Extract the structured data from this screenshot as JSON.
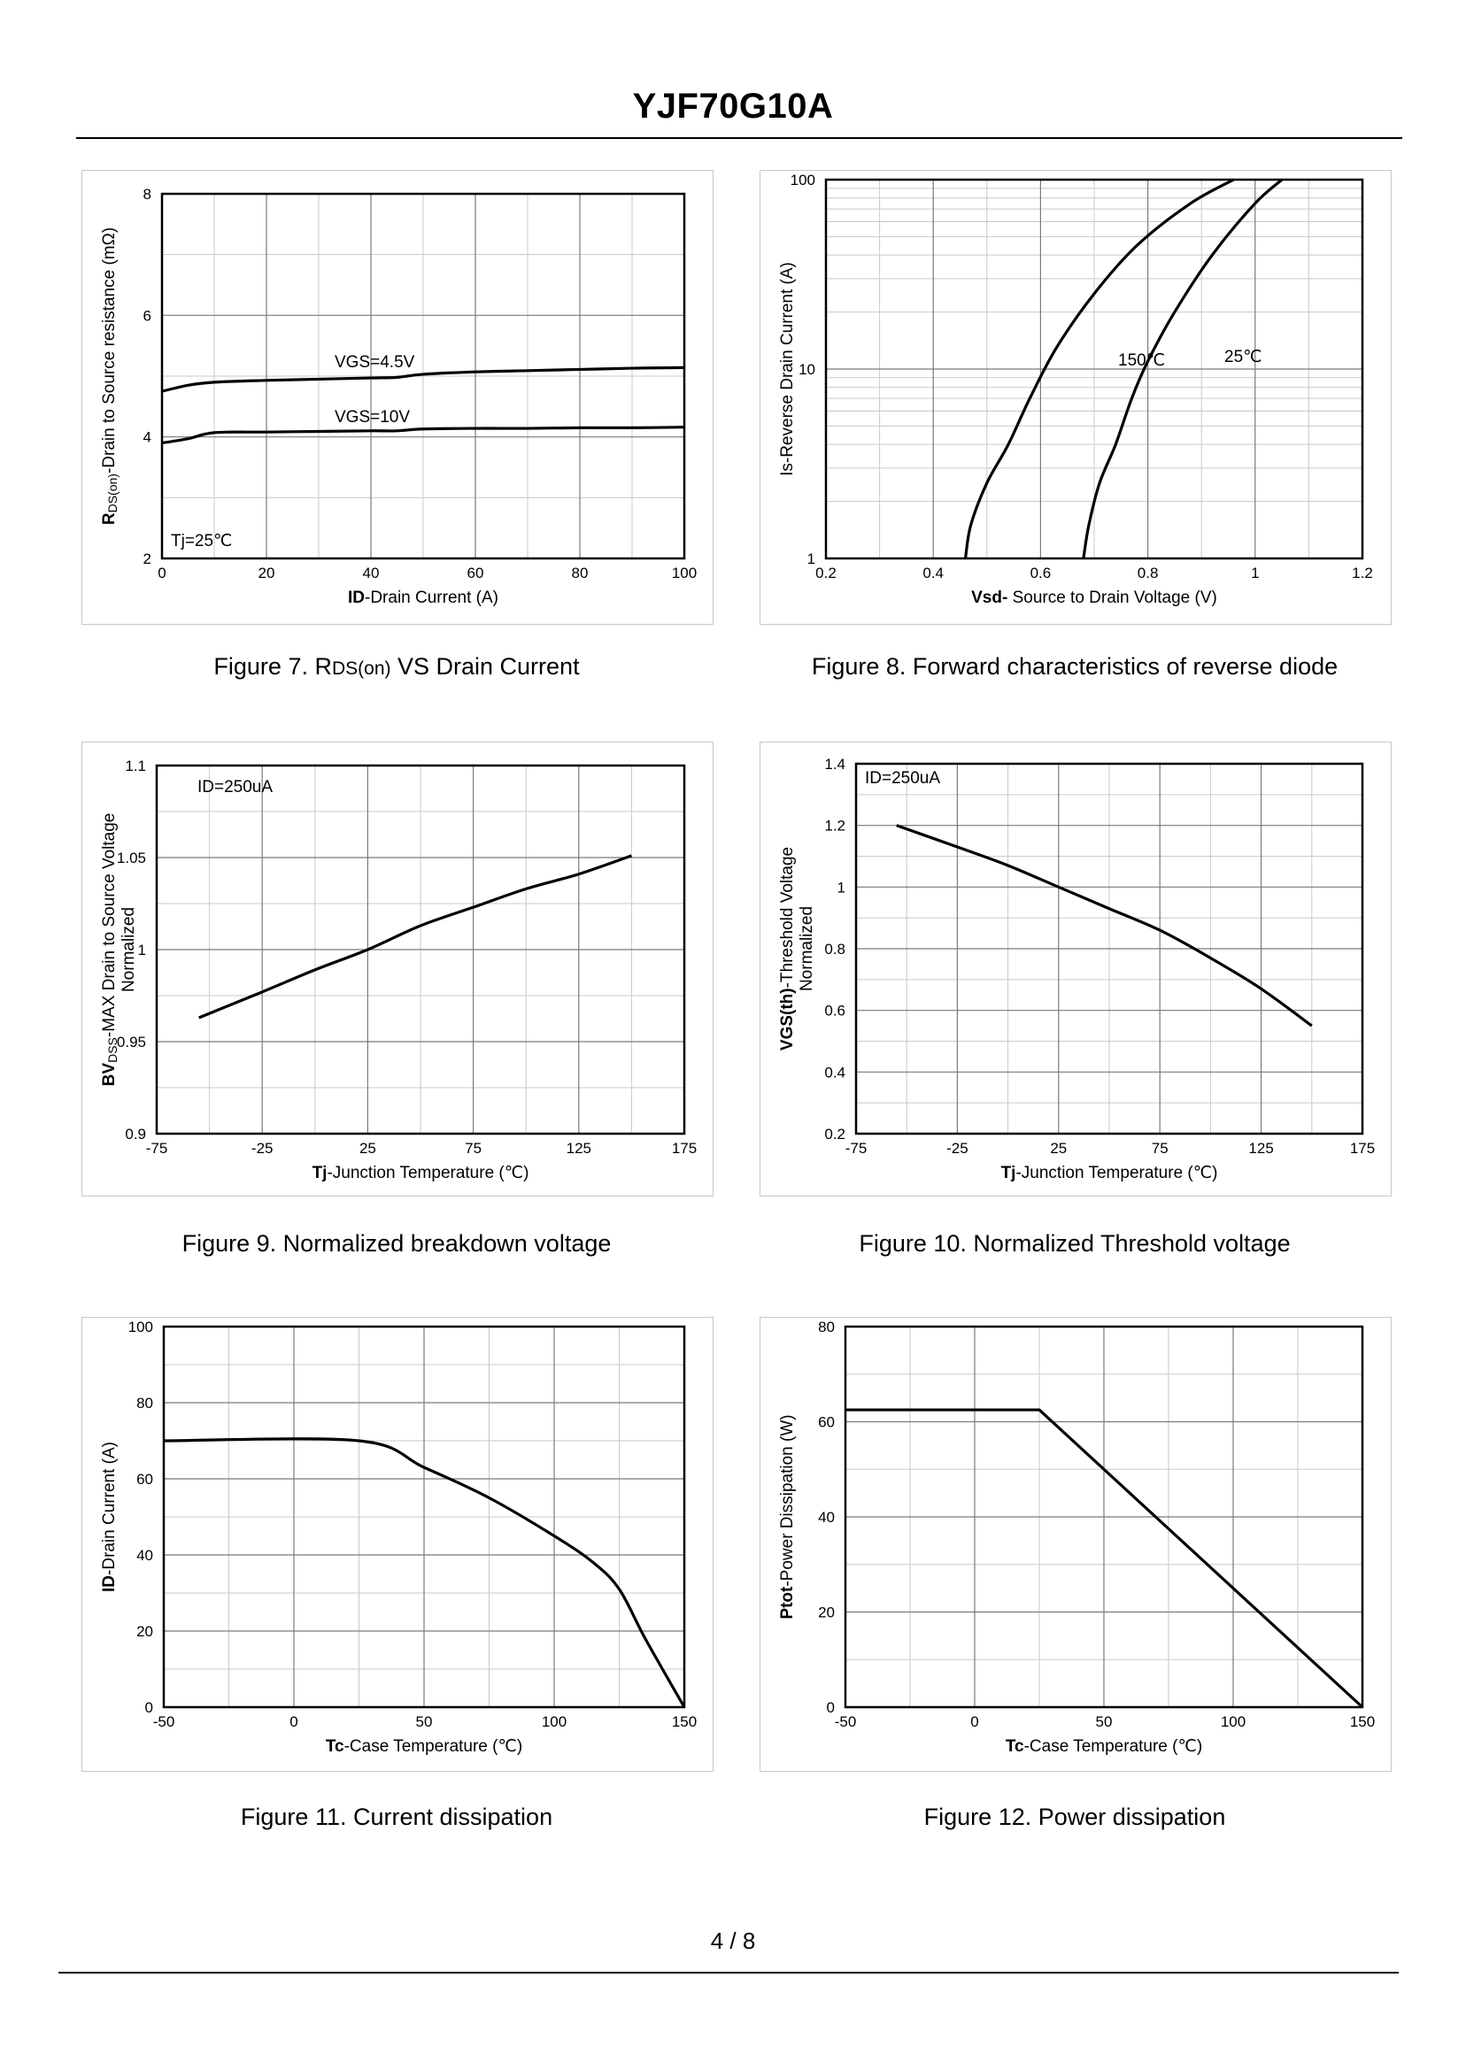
{
  "header": {
    "title": "YJF70G10A"
  },
  "footer": {
    "page": "4 / 8"
  },
  "captions": {
    "fig7": {
      "prefix": "Figure 7.  R",
      "sub": "DS(on)",
      "suffix": " VS Drain Current"
    },
    "fig8": "Figure 8.  Forward characteristics of reverse diode",
    "fig9": "Figure 9.  Normalized breakdown voltage",
    "fig10": "Figure 10.  Normalized Threshold voltage",
    "fig11": "Figure 11.  Current dissipation",
    "fig12": "Figure 12.  Power dissipation"
  },
  "chart_data": [
    {
      "id": "fig7",
      "type": "line",
      "xlim": [
        0,
        100
      ],
      "ylim": [
        2,
        8
      ],
      "xticks": [
        0,
        20,
        40,
        60,
        80,
        100
      ],
      "yticks": [
        2,
        4,
        6,
        8
      ],
      "major_x": [
        20,
        40,
        60,
        80
      ],
      "minor_x": [
        10,
        30,
        50,
        70,
        90
      ],
      "major_y": [
        4,
        6
      ],
      "minor_y": [
        3,
        5,
        7
      ],
      "xlabel": {
        "bold": "ID",
        "rest": "-Drain Current (A)"
      },
      "ylabel": {
        "bold": "R",
        "sub": "DS(on)",
        "rest": "-Drain to Source resistance (mΩ)"
      },
      "annotation": "Tj=25℃",
      "series": [
        {
          "name": "VGS=4.5V",
          "x": [
            0,
            5,
            10,
            20,
            30,
            40,
            45,
            50,
            60,
            70,
            80,
            90,
            100
          ],
          "y": [
            4.75,
            4.85,
            4.9,
            4.93,
            4.95,
            4.97,
            4.98,
            5.03,
            5.07,
            5.09,
            5.11,
            5.13,
            5.14
          ]
        },
        {
          "name": "VGS=10V",
          "x": [
            0,
            5,
            10,
            20,
            30,
            40,
            45,
            50,
            60,
            70,
            80,
            90,
            100
          ],
          "y": [
            3.9,
            3.97,
            4.07,
            4.08,
            4.09,
            4.1,
            4.1,
            4.13,
            4.14,
            4.14,
            4.15,
            4.15,
            4.16
          ]
        }
      ]
    },
    {
      "id": "fig8",
      "type": "line",
      "yscale": "log",
      "xlim": [
        0.2,
        1.2
      ],
      "ylim": [
        1,
        100
      ],
      "xticks": [
        0.2,
        0.4,
        0.6,
        0.8,
        1,
        1.2
      ],
      "xticklabels": [
        "0.2",
        "0.4",
        "0.6",
        "0.8",
        "1",
        "1.2"
      ],
      "yticks": [
        1,
        10,
        100
      ],
      "yticklabels": [
        "1",
        "10",
        "100"
      ],
      "major_x": [
        0.4,
        0.6,
        0.8,
        1.0
      ],
      "minor_x": [
        0.3,
        0.5,
        0.7,
        0.9,
        1.1
      ],
      "xlabel": {
        "bold": "Vsd-",
        "rest": " Source to Drain Voltage (V)"
      },
      "ylabel": {
        "bold": "",
        "rest": "Is-Reverse  Drain Current (A)"
      },
      "series": [
        {
          "name": "150℃",
          "x": [
            0.46,
            0.47,
            0.5,
            0.54,
            0.58,
            0.63,
            0.7,
            0.78,
            0.88,
            0.96
          ],
          "y": [
            1,
            1.5,
            2.5,
            4,
            7,
            13,
            25,
            45,
            75,
            100
          ]
        },
        {
          "name": "25℃",
          "x": [
            0.68,
            0.69,
            0.71,
            0.74,
            0.77,
            0.8,
            0.85,
            0.92,
            1.0,
            1.05
          ],
          "y": [
            1,
            1.5,
            2.5,
            4,
            7,
            11,
            20,
            40,
            75,
            100
          ]
        }
      ]
    },
    {
      "id": "fig9",
      "type": "line",
      "xlim": [
        -75,
        175
      ],
      "ylim": [
        0.9,
        1.1
      ],
      "xticks": [
        -75,
        -25,
        25,
        75,
        125,
        175
      ],
      "yticks": [
        0.9,
        0.95,
        1,
        1.05,
        1.1
      ],
      "yticklabels": [
        "0.9",
        "0.95",
        "1",
        "1.05",
        "1.1"
      ],
      "major_x": [
        -25,
        25,
        75,
        125
      ],
      "minor_x": [
        -50,
        0,
        50,
        100,
        150
      ],
      "major_y": [
        0.95,
        1.0,
        1.05
      ],
      "minor_y": [
        0.925,
        0.975,
        1.025,
        1.075
      ],
      "xlabel": {
        "bold": "Tj",
        "rest": "-Junction  Temperature (℃)"
      },
      "ylabel": {
        "bold": "BV",
        "sub": "DSS",
        "rest": "-MAX Drain to Source Voltage"
      },
      "ylabel2": "Normalized",
      "annotation": "ID=250uA",
      "series": [
        {
          "name": "BVdss",
          "x": [
            -55,
            -25,
            0,
            25,
            50,
            75,
            100,
            125,
            150
          ],
          "y": [
            0.963,
            0.977,
            0.989,
            1.0,
            1.013,
            1.023,
            1.033,
            1.041,
            1.051
          ]
        }
      ]
    },
    {
      "id": "fig10",
      "type": "line",
      "xlim": [
        -75,
        175
      ],
      "ylim": [
        0.2,
        1.4
      ],
      "xticks": [
        -75,
        -25,
        25,
        75,
        125,
        175
      ],
      "yticks": [
        0.2,
        0.4,
        0.6,
        0.8,
        1,
        1.2,
        1.4
      ],
      "yticklabels": [
        "0.2",
        "0.4",
        "0.6",
        "0.8",
        "1",
        "1.2",
        "1.4"
      ],
      "major_x": [
        -25,
        25,
        75,
        125
      ],
      "minor_x": [
        -50,
        0,
        50,
        100,
        150
      ],
      "major_y": [
        0.4,
        0.6,
        0.8,
        1.0,
        1.2
      ],
      "minor_y": [
        0.3,
        0.5,
        0.7,
        0.9,
        1.1,
        1.3
      ],
      "xlabel": {
        "bold": "Tj",
        "rest": "-Junction  Temperature (℃)"
      },
      "ylabel": {
        "bold": "VGS(th)",
        "rest": "-Threshold  Voltage"
      },
      "ylabel2": "Normalized",
      "annotation": "ID=250uA",
      "series": [
        {
          "name": "VGS(th)",
          "x": [
            -55,
            -25,
            0,
            25,
            50,
            75,
            100,
            125,
            150
          ],
          "y": [
            1.2,
            1.13,
            1.07,
            1.0,
            0.93,
            0.86,
            0.77,
            0.67,
            0.55
          ]
        }
      ]
    },
    {
      "id": "fig11",
      "type": "line",
      "xlim": [
        -50,
        150
      ],
      "ylim": [
        0,
        100
      ],
      "xticks": [
        -50,
        0,
        50,
        100,
        150
      ],
      "yticks": [
        0,
        20,
        40,
        60,
        80,
        100
      ],
      "major_x": [
        0,
        50,
        100
      ],
      "minor_x": [
        -25,
        25,
        75,
        125
      ],
      "major_y": [
        20,
        40,
        60,
        80
      ],
      "minor_y": [
        10,
        30,
        50,
        70,
        90
      ],
      "xlabel": {
        "bold": "Tc",
        "rest": "-Case Temperature (℃)"
      },
      "ylabel": {
        "bold": "ID",
        "rest": "-Drain Current (A)"
      },
      "series": [
        {
          "name": "ID",
          "x": [
            -50,
            25,
            50,
            75,
            100,
            115,
            125,
            135,
            150
          ],
          "y": [
            70,
            70,
            63,
            55,
            45,
            38,
            31,
            18,
            0
          ]
        }
      ]
    },
    {
      "id": "fig12",
      "type": "line",
      "xlim": [
        -50,
        150
      ],
      "ylim": [
        0,
        80
      ],
      "xticks": [
        -50,
        0,
        50,
        100,
        150
      ],
      "yticks": [
        0,
        20,
        40,
        60,
        80
      ],
      "major_x": [
        0,
        50,
        100
      ],
      "minor_x": [
        -25,
        25,
        75,
        125
      ],
      "major_y": [
        20,
        40,
        60
      ],
      "minor_y": [
        10,
        30,
        50,
        70
      ],
      "xlabel": {
        "bold": "Tc",
        "rest": "-Case Temperature (℃)"
      },
      "ylabel": {
        "bold": "Ptot",
        "rest": "-Power Dissipation (W)"
      },
      "series": [
        {
          "name": "Ptot",
          "x": [
            -50,
            25,
            150
          ],
          "y": [
            62.5,
            62.5,
            0
          ]
        }
      ]
    }
  ]
}
